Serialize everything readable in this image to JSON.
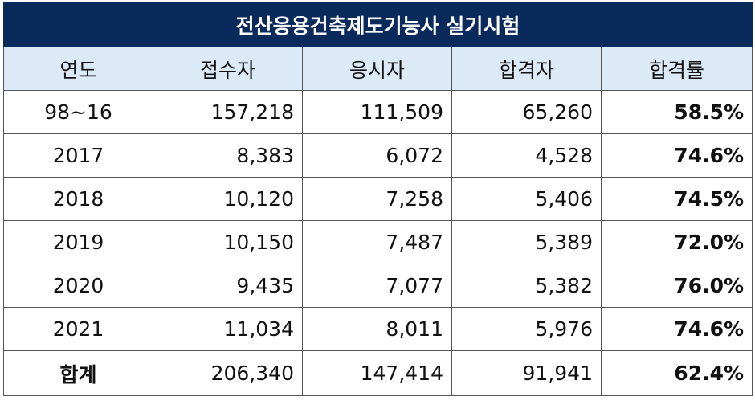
{
  "title": "전산응용건축제도기능사 실기시험",
  "headers": [
    "연도",
    "접수자",
    "응시자",
    "합격자",
    "합격률"
  ],
  "rows": [
    {
      "year": "98~16",
      "applicants": "157,218",
      "examinees": "111,509",
      "passers": "65,260",
      "pass_rate": "58.5%"
    },
    {
      "year": "2017",
      "applicants": "8,383",
      "examinees": "6,072",
      "passers": "4,528",
      "pass_rate": "74.6%"
    },
    {
      "year": "2018",
      "applicants": "10,120",
      "examinees": "7,258",
      "passers": "5,406",
      "pass_rate": "74.5%"
    },
    {
      "year": "2019",
      "applicants": "10,150",
      "examinees": "7,487",
      "passers": "5,389",
      "pass_rate": "72.0%"
    },
    {
      "year": "2020",
      "applicants": "9,435",
      "examinees": "7,077",
      "passers": "5,382",
      "pass_rate": "76.0%"
    },
    {
      "year": "2021",
      "applicants": "11,034",
      "examinees": "8,011",
      "passers": "5,976",
      "pass_rate": "74.6%"
    }
  ],
  "total": {
    "label": "합계",
    "applicants": "206,340",
    "examinees": "147,414",
    "passers": "91,941",
    "pass_rate": "62.4%"
  },
  "colors": {
    "title_bg": "#0b2a5c",
    "header_bg": "#dce9f6",
    "border": "#555555"
  }
}
